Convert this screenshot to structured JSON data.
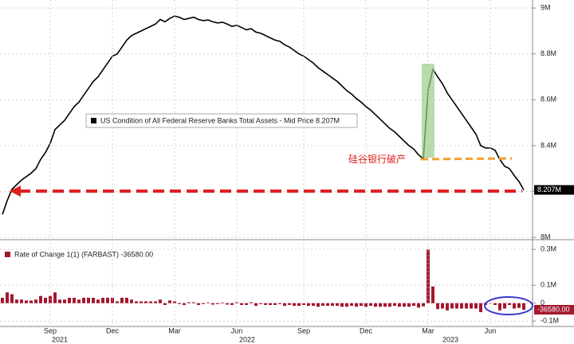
{
  "chart_data": [
    {
      "type": "line",
      "name": "US Condition of All Federal Reserve Banks Total Assets - Mid Price 8.207M",
      "color": "#000000",
      "values": [
        8100000,
        8160000,
        8210000,
        8230000,
        8250000,
        8265000,
        8280000,
        8300000,
        8340000,
        8370000,
        8410000,
        8470000,
        8490000,
        8510000,
        8540000,
        8570000,
        8590000,
        8620000,
        8650000,
        8680000,
        8700000,
        8730000,
        8760000,
        8790000,
        8800000,
        8830000,
        8860000,
        8880000,
        8890000,
        8900000,
        8910000,
        8920000,
        8930000,
        8950000,
        8940000,
        8955000,
        8965000,
        8960000,
        8950000,
        8955000,
        8960000,
        8950000,
        8945000,
        8948000,
        8940000,
        8935000,
        8938000,
        8930000,
        8920000,
        8925000,
        8915000,
        8905000,
        8910000,
        8895000,
        8890000,
        8880000,
        8870000,
        8860000,
        8855000,
        8840000,
        8830000,
        8815000,
        8800000,
        8790000,
        8775000,
        8760000,
        8740000,
        8725000,
        8710000,
        8695000,
        8680000,
        8660000,
        8640000,
        8625000,
        8605000,
        8590000,
        8570000,
        8555000,
        8535000,
        8515000,
        8495000,
        8475000,
        8460000,
        8440000,
        8420000,
        8400000,
        8385000,
        8360000,
        8342000,
        8640000,
        8733000,
        8700000,
        8670000,
        8630000,
        8600000,
        8570000,
        8540000,
        8510000,
        8480000,
        8450000,
        8400000,
        8390000,
        8390000,
        8380000,
        8340000,
        8310000,
        8300000,
        8270000,
        8243580,
        8207000
      ],
      "value_labels": [
        null,
        null,
        null,
        null,
        null,
        null,
        null,
        null,
        null,
        null,
        null,
        null,
        null,
        null,
        null,
        null,
        null,
        null,
        null,
        null,
        null,
        null,
        null,
        null,
        null,
        null,
        null,
        null,
        null,
        null,
        null,
        null,
        null,
        null,
        null,
        null,
        null,
        null,
        null,
        null,
        null,
        null,
        null,
        null,
        null,
        null,
        null,
        null,
        null,
        null,
        null,
        null,
        null,
        null,
        null,
        null,
        null,
        null,
        null,
        null,
        null,
        null,
        null,
        null,
        null,
        null,
        null,
        null,
        null,
        null,
        null,
        null,
        null,
        null,
        null,
        null,
        null,
        null,
        null,
        null,
        null,
        null,
        null,
        null,
        null,
        null,
        null,
        null,
        null,
        null,
        null,
        null,
        null,
        null,
        null,
        null,
        null,
        null,
        null,
        null,
        null,
        null,
        null,
        null,
        null,
        null,
        null,
        null,
        null,
        "8.207M"
      ],
      "ylim": [
        7990000,
        9035000
      ],
      "yticks": [
        {
          "value": 8000000,
          "label": "8M"
        },
        {
          "value": 8200000,
          "label": "8.2M"
        },
        {
          "value": 8400000,
          "label": "8.4M"
        },
        {
          "value": 8600000,
          "label": "8.6M"
        },
        {
          "value": 8800000,
          "label": "8.8M"
        },
        {
          "value": 9000000,
          "label": "9M"
        }
      ],
      "grid": true,
      "annotation": "硅谷银行破产"
    },
    {
      "type": "bar",
      "name": "Rate of Change 1(1) (FARBAST) -36580.00",
      "color": "#a3182e",
      "categories": [
        null,
        null,
        null,
        null,
        null,
        null,
        null,
        null,
        null,
        null,
        "Sep",
        null,
        null,
        null,
        null,
        null,
        null,
        null,
        null,
        null,
        null,
        null,
        null,
        "Dec",
        null,
        null,
        null,
        null,
        null,
        null,
        null,
        null,
        null,
        null,
        null,
        null,
        "Mar",
        null,
        null,
        null,
        null,
        null,
        null,
        null,
        null,
        null,
        null,
        null,
        null,
        "Jun",
        null,
        null,
        null,
        null,
        null,
        null,
        null,
        null,
        null,
        null,
        null,
        null,
        null,
        "Sep",
        null,
        null,
        null,
        null,
        null,
        null,
        null,
        null,
        null,
        null,
        null,
        null,
        "Dec",
        null,
        null,
        null,
        null,
        null,
        null,
        null,
        null,
        null,
        null,
        null,
        null,
        "Mar",
        null,
        null,
        null,
        null,
        null,
        null,
        null,
        null,
        null,
        null,
        null,
        null,
        "Jun",
        null,
        null,
        null,
        null,
        null,
        null,
        null
      ],
      "years": [
        "2021",
        "2022",
        "2023"
      ],
      "values": [
        30000,
        60000,
        50000,
        20000,
        20000,
        15000,
        15000,
        20000,
        40000,
        30000,
        40000,
        60000,
        20000,
        20000,
        30000,
        30000,
        20000,
        30000,
        30000,
        30000,
        20000,
        30000,
        30000,
        30000,
        10000,
        30000,
        30000,
        20000,
        10000,
        10000,
        10000,
        10000,
        10000,
        20000,
        -10000,
        15000,
        10000,
        -5000,
        -10000,
        5000,
        5000,
        -10000,
        -5000,
        3000,
        -8000,
        -5000,
        3000,
        -8000,
        -10000,
        5000,
        -10000,
        -10000,
        5000,
        -15000,
        -5000,
        -10000,
        -10000,
        -10000,
        -5000,
        -15000,
        -10000,
        -15000,
        -15000,
        -10000,
        -15000,
        -15000,
        -20000,
        -15000,
        -15000,
        -15000,
        -15000,
        -20000,
        -20000,
        -15000,
        -20000,
        -15000,
        -20000,
        -15000,
        -20000,
        -20000,
        -20000,
        -20000,
        -15000,
        -20000,
        -20000,
        -20000,
        -15000,
        -25000,
        -18000,
        298000,
        93000,
        -33000,
        -30000,
        -40000,
        -30000,
        -30000,
        -30000,
        -30000,
        -30000,
        -30000,
        -50000,
        -10000,
        0,
        -10000,
        -40000,
        -30000,
        -10000,
        -30000,
        -26420,
        -36580
      ],
      "value_labels": [
        null,
        null,
        null,
        null,
        null,
        null,
        null,
        null,
        null,
        null,
        null,
        null,
        null,
        null,
        null,
        null,
        null,
        null,
        null,
        null,
        null,
        null,
        null,
        null,
        null,
        null,
        null,
        null,
        null,
        null,
        null,
        null,
        null,
        null,
        null,
        null,
        null,
        null,
        null,
        null,
        null,
        null,
        null,
        null,
        null,
        null,
        null,
        null,
        null,
        null,
        null,
        null,
        null,
        null,
        null,
        null,
        null,
        null,
        null,
        null,
        null,
        null,
        null,
        null,
        null,
        null,
        null,
        null,
        null,
        null,
        null,
        null,
        null,
        null,
        null,
        null,
        null,
        null,
        null,
        null,
        null,
        null,
        null,
        null,
        null,
        null,
        null,
        null,
        null,
        null,
        null,
        null,
        null,
        null,
        null,
        null,
        null,
        null,
        null,
        null,
        null,
        null,
        null,
        null,
        null,
        null,
        null,
        null,
        null,
        "-36580.00"
      ],
      "ylim": [
        -130000,
        345000
      ],
      "yticks": [
        {
          "value": -100000,
          "label": "-0.1M"
        },
        0,
        {
          "value": 100000,
          "label": "0.1M"
        },
        {
          "value": 300000,
          "label": "0.3M"
        }
      ],
      "grid": true
    }
  ]
}
